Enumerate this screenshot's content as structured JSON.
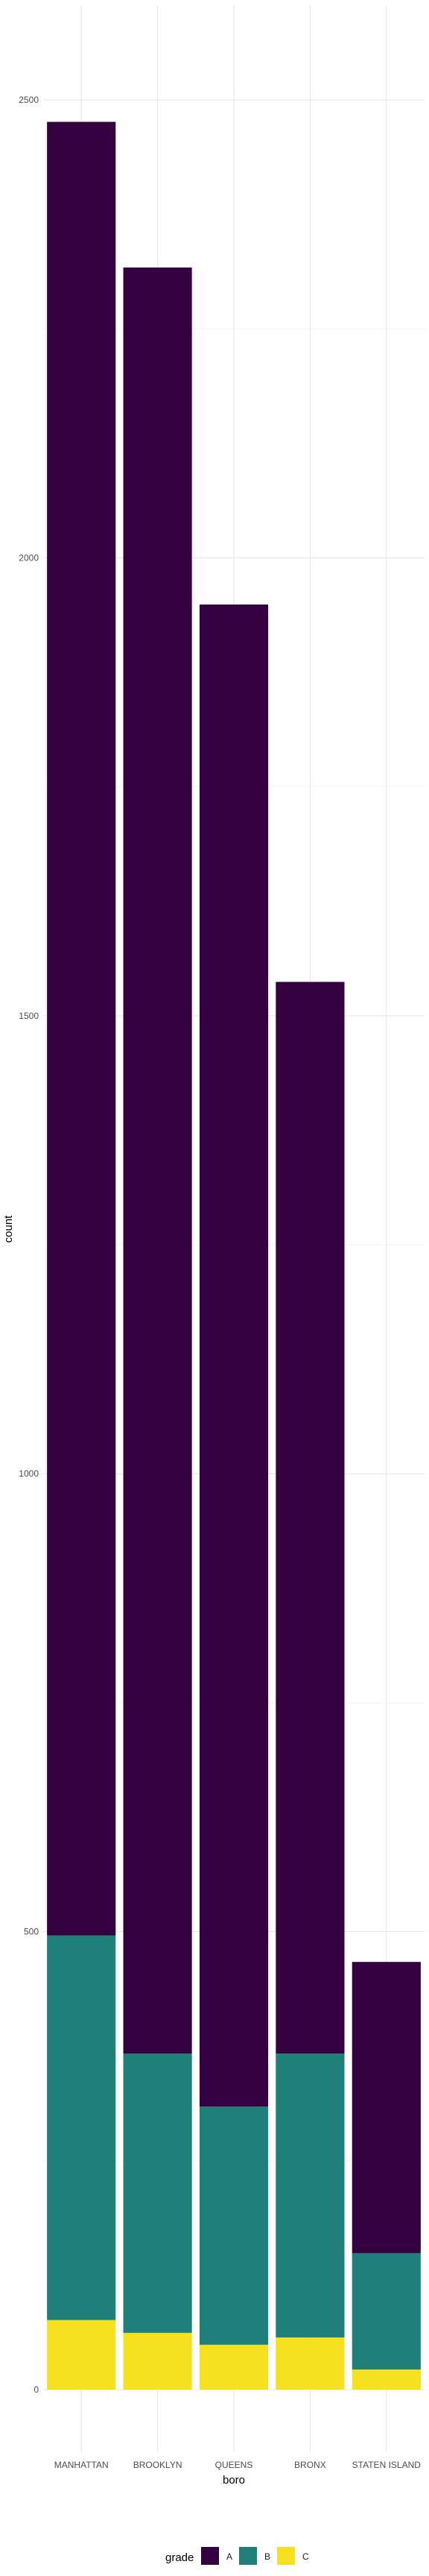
{
  "chart_data": {
    "type": "bar",
    "stacked": true,
    "xlabel": "boro",
    "ylabel": "count",
    "categories": [
      "MANHATTAN",
      "BROOKLYN",
      "QUEENS",
      "BRONX",
      "STATEN ISLAND"
    ],
    "series": [
      {
        "name": "A",
        "color": "#35003f",
        "values": [
          1980,
          1950,
          1640,
          1170,
          318
        ]
      },
      {
        "name": "B",
        "color": "#1f7f79",
        "values": [
          420,
          305,
          260,
          310,
          127
        ]
      },
      {
        "name": "C",
        "color": "#f6e11f",
        "values": [
          76,
          62,
          49,
          57,
          22
        ]
      }
    ],
    "ylim": [
      0,
      2600
    ],
    "yticks": [
      0,
      500,
      1000,
      1500,
      2000,
      2500
    ],
    "grid": true,
    "legend": {
      "title": "grade",
      "position": "bottom"
    }
  }
}
